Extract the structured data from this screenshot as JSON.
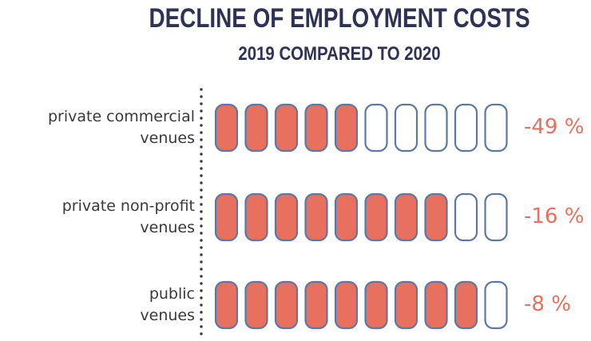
{
  "title": "DECLINE OF EMPLOYMENT COSTS",
  "subtitle": "2019 COMPARED TO 2020",
  "colors": {
    "filled": "#e8705e",
    "outline": "#5b78a6",
    "title": "#2e3257",
    "value": "#e8705e"
  },
  "chart_data": {
    "type": "bar",
    "title": "DECLINE OF EMPLOYMENT COSTS",
    "subtitle": "2019 COMPARED TO 2020",
    "units_per_row": 10,
    "categories": [
      {
        "line1": "private commercial",
        "line2": "venues"
      },
      {
        "line1": "private non-profit",
        "line2": "venues"
      },
      {
        "line1": "public",
        "line2": "venues"
      }
    ],
    "values": [
      -49,
      -16,
      -8
    ],
    "filled_units": [
      5,
      8,
      9
    ],
    "value_labels": [
      "-49 %",
      "-16 %",
      "-8 %"
    ]
  }
}
